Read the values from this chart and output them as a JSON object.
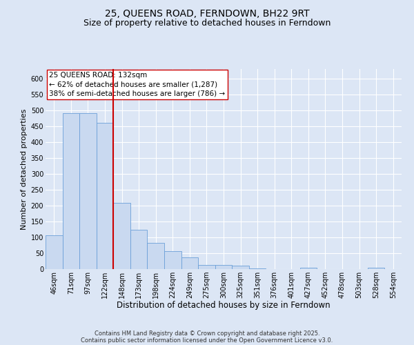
{
  "title": "25, QUEENS ROAD, FERNDOWN, BH22 9RT",
  "subtitle": "Size of property relative to detached houses in Ferndown",
  "xlabel": "Distribution of detached houses by size in Ferndown",
  "ylabel": "Number of detached properties",
  "categories": [
    "46sqm",
    "71sqm",
    "97sqm",
    "122sqm",
    "148sqm",
    "173sqm",
    "198sqm",
    "224sqm",
    "249sqm",
    "275sqm",
    "300sqm",
    "325sqm",
    "351sqm",
    "376sqm",
    "401sqm",
    "427sqm",
    "452sqm",
    "478sqm",
    "503sqm",
    "528sqm",
    "554sqm"
  ],
  "values": [
    107,
    492,
    492,
    460,
    208,
    124,
    83,
    57,
    38,
    13,
    13,
    10,
    2,
    0,
    0,
    5,
    0,
    0,
    0,
    5,
    0
  ],
  "bar_color": "#c9d9f0",
  "bar_edge_color": "#6a9fd8",
  "vline_color": "#cc0000",
  "vline_pos": 3.5,
  "annotation_line1": "25 QUEENS ROAD: 132sqm",
  "annotation_line2": "← 62% of detached houses are smaller (1,287)",
  "annotation_line3": "38% of semi-detached houses are larger (786) →",
  "annotation_box_facecolor": "#ffffff",
  "annotation_box_edgecolor": "#cc0000",
  "ylim": [
    0,
    630
  ],
  "yticks": [
    0,
    50,
    100,
    150,
    200,
    250,
    300,
    350,
    400,
    450,
    500,
    550,
    600
  ],
  "background_color": "#dce6f5",
  "plot_bg_color": "#dce6f5",
  "footer_line1": "Contains HM Land Registry data © Crown copyright and database right 2025.",
  "footer_line2": "Contains public sector information licensed under the Open Government Licence v3.0.",
  "title_fontsize": 10,
  "subtitle_fontsize": 9,
  "xlabel_fontsize": 8.5,
  "ylabel_fontsize": 8,
  "tick_fontsize": 7,
  "annotation_fontsize": 7.5,
  "footer_fontsize": 6
}
